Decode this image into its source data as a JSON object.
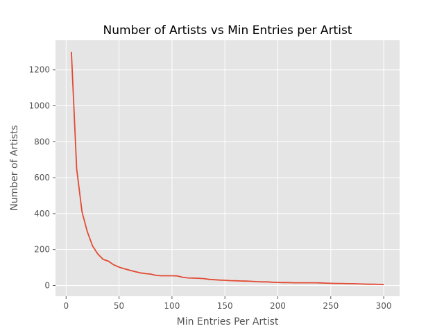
{
  "chart_data": {
    "type": "line",
    "title": "Number of Artists vs Min Entries per Artist",
    "xlabel": "Min Entries Per Artist",
    "ylabel": "Number of Artists",
    "xlim": [
      -10,
      315
    ],
    "ylim": [
      -60,
      1365
    ],
    "xticks": [
      0,
      50,
      100,
      150,
      200,
      250,
      300
    ],
    "yticks": [
      0,
      200,
      400,
      600,
      800,
      1000,
      1200
    ],
    "grid": true,
    "background": "#e5e5e5",
    "grid_color": "#ffffff",
    "line_color": "#e24a33",
    "series": [
      {
        "x": [
          5,
          10,
          15,
          20,
          25,
          30,
          35,
          40,
          45,
          50,
          55,
          60,
          65,
          70,
          75,
          80,
          85,
          90,
          95,
          100,
          105,
          110,
          115,
          120,
          125,
          130,
          135,
          140,
          145,
          150,
          155,
          160,
          165,
          170,
          175,
          180,
          185,
          190,
          195,
          200,
          205,
          210,
          215,
          220,
          225,
          230,
          235,
          240,
          245,
          250,
          255,
          260,
          265,
          270,
          275,
          280,
          285,
          290,
          295,
          300
        ],
        "values": [
          1300,
          650,
          410,
          300,
          220,
          175,
          145,
          135,
          115,
          102,
          93,
          85,
          77,
          70,
          66,
          63,
          56,
          54,
          54,
          54,
          53,
          46,
          42,
          41,
          40,
          38,
          34,
          32,
          30,
          29,
          27,
          26,
          25,
          24,
          23,
          21,
          20,
          20,
          18,
          17,
          16,
          16,
          15,
          15,
          15,
          15,
          15,
          14,
          13,
          12,
          11,
          11,
          10,
          10,
          9,
          8,
          7,
          7,
          6,
          5
        ]
      }
    ]
  }
}
